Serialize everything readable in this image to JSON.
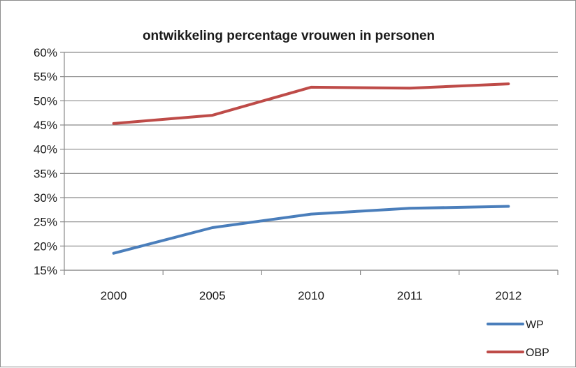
{
  "chart_data": {
    "type": "line",
    "title": "ontwikkeling percentage vrouwen in personen",
    "xlabel": "",
    "ylabel": "",
    "categories": [
      "2000",
      "2005",
      "2010",
      "2011",
      "2012"
    ],
    "ylim": [
      15,
      60
    ],
    "yticks": [
      "15%",
      "20%",
      "25%",
      "30%",
      "35%",
      "40%",
      "45%",
      "50%",
      "55%",
      "60%"
    ],
    "grid": true,
    "legend_position": "bottom-right",
    "series": [
      {
        "name": "WP",
        "color": "#4a7ebb",
        "values": [
          18.5,
          23.8,
          26.6,
          27.8,
          28.2
        ]
      },
      {
        "name": "OBP",
        "color": "#be4b48",
        "values": [
          45.3,
          47.0,
          52.8,
          52.6,
          53.5
        ]
      }
    ]
  }
}
